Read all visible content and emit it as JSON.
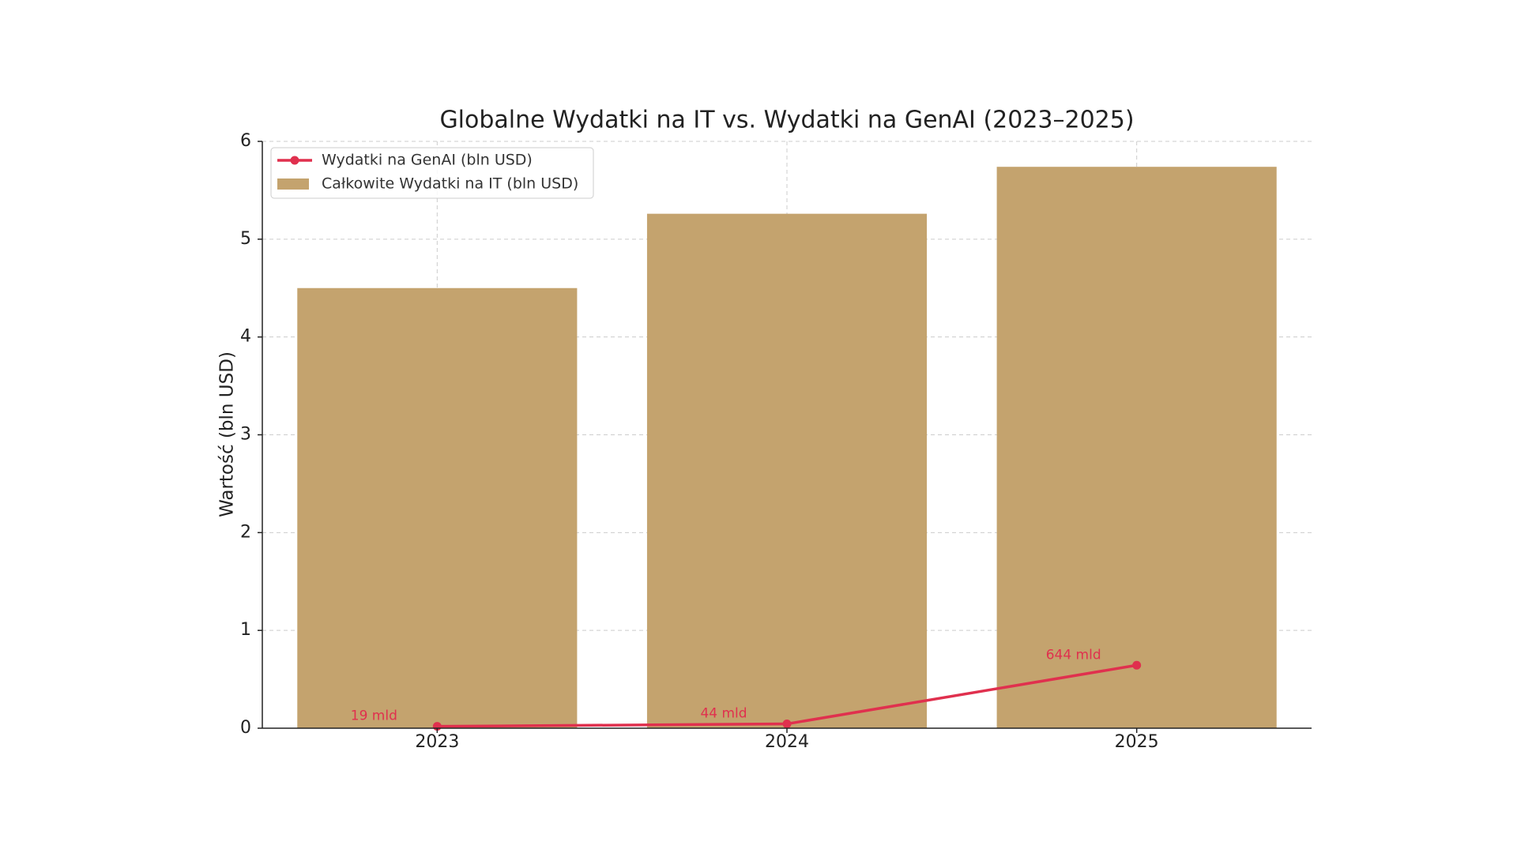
{
  "chart_data": {
    "type": "bar",
    "title": "Globalne Wydatki na IT vs. Wydatki na GenAI (2023–2025)",
    "y_label": "Wartość (bln USD)",
    "categories": [
      "2023",
      "2024",
      "2025"
    ],
    "series": [
      {
        "name": "Wydatki na GenAI (bln USD)",
        "type": "line",
        "color": "#e0304e",
        "values": [
          0.019,
          0.044,
          0.644
        ],
        "value_labels": [
          "19 mld",
          "44 mld",
          "644 mld"
        ]
      },
      {
        "name": "Całkowite Wydatki na IT (bln USD)",
        "type": "bar",
        "color": "#c4a36e",
        "values": [
          4.5,
          5.26,
          5.74
        ]
      }
    ],
    "ylim": [
      0,
      6
    ],
    "yticks": [
      0,
      1,
      2,
      3,
      4,
      5,
      6
    ],
    "grid": true,
    "legend": "upper left"
  }
}
